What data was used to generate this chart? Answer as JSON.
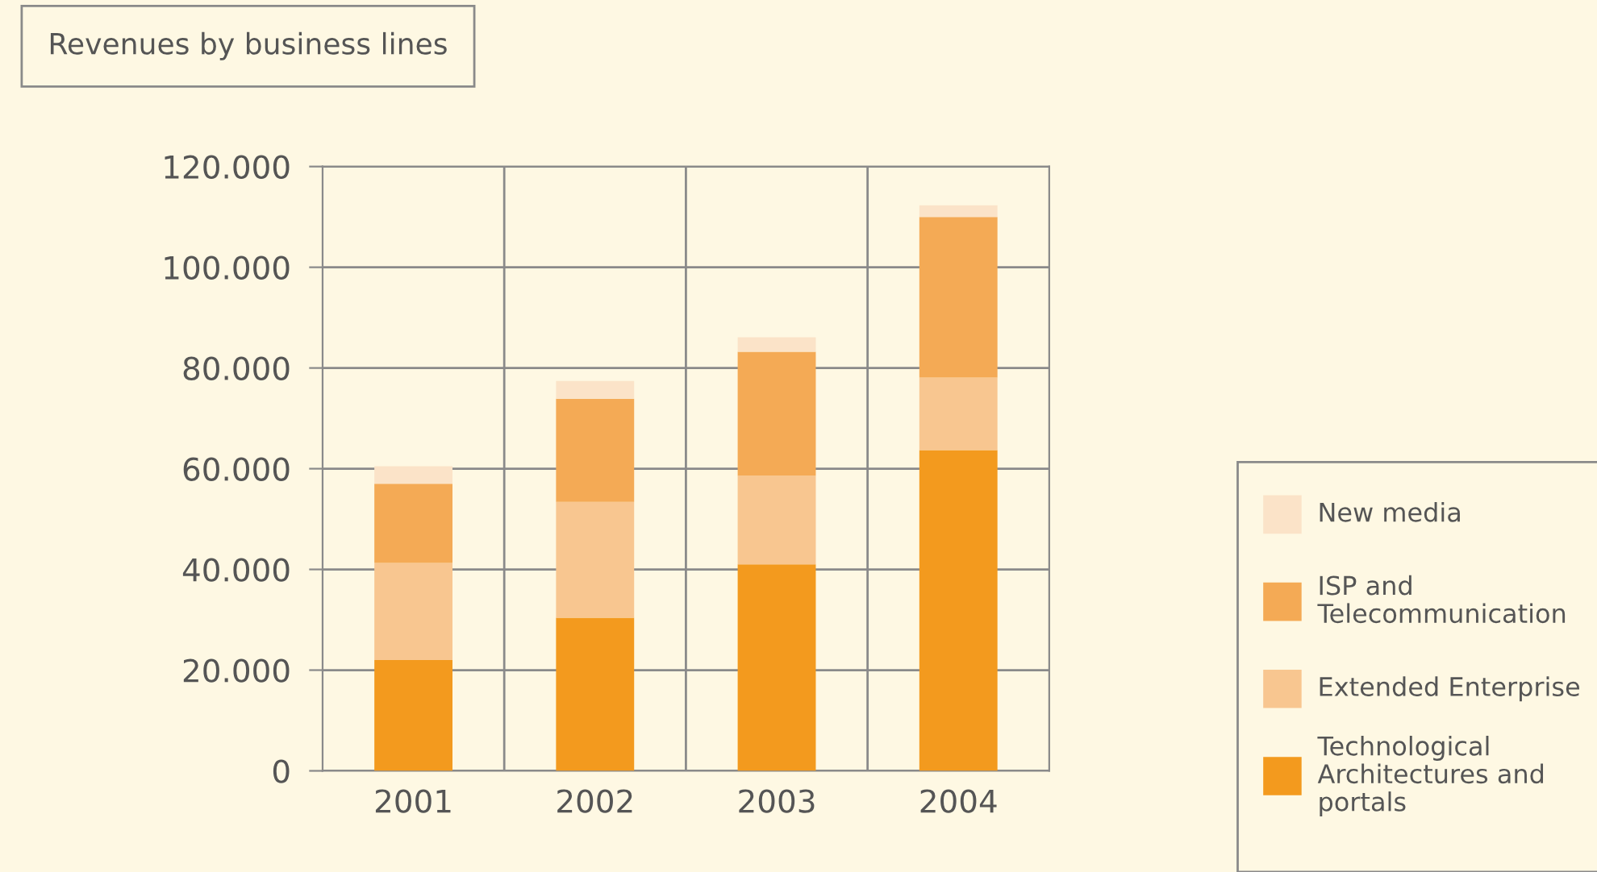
{
  "chart_data": {
    "type": "bar",
    "stacked": true,
    "title": "Revenues by business lines",
    "categories": [
      "2001",
      "2002",
      "2003",
      "2004"
    ],
    "series": [
      {
        "name": "Technological Architectures and portals",
        "color": "#f39a1e",
        "values": [
          22000,
          30400,
          41000,
          63700
        ]
      },
      {
        "name": "Extended Enterprise",
        "color": "#f8c690",
        "values": [
          19300,
          23000,
          17600,
          14400
        ]
      },
      {
        "name": "ISP and Telecommunication",
        "color": "#f4aa55",
        "values": [
          15700,
          20500,
          24600,
          31900
        ]
      },
      {
        "name": "New media",
        "color": "#fbe3c8",
        "values": [
          3500,
          3500,
          2900,
          2300
        ]
      }
    ],
    "ylim": [
      0,
      120000
    ],
    "yticks": [
      {
        "value": 0,
        "label": "0"
      },
      {
        "value": 20000,
        "label": "20.000"
      },
      {
        "value": 40000,
        "label": "40.000"
      },
      {
        "value": 60000,
        "label": "60.000"
      },
      {
        "value": 80000,
        "label": "80.000"
      },
      {
        "value": 100000,
        "label": "100.000"
      },
      {
        "value": 120000,
        "label": "120.000"
      }
    ],
    "grid": true,
    "legend": "right"
  }
}
